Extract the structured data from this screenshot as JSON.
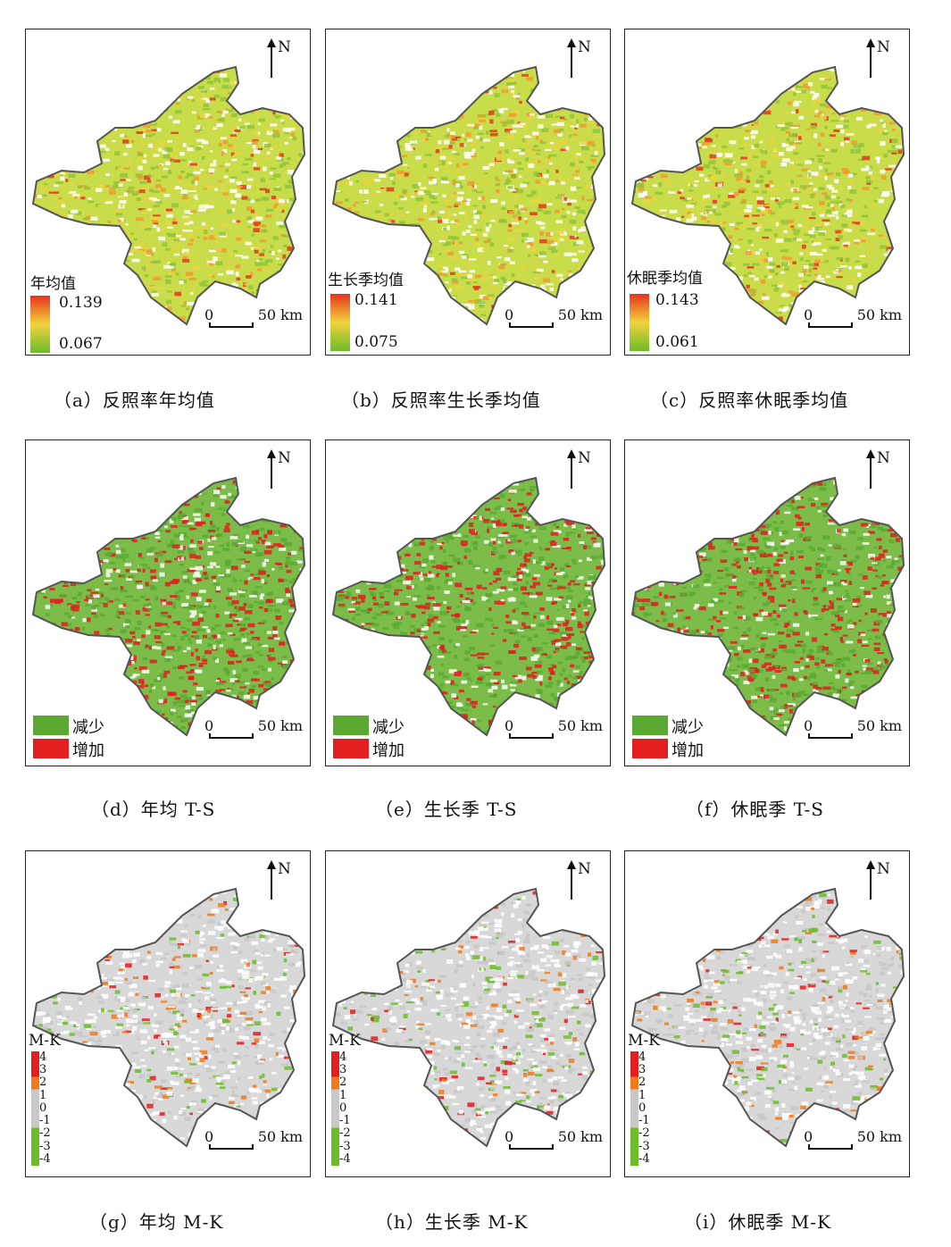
{
  "north_label": "N",
  "scale": {
    "zero": "0",
    "distance": "50 km"
  },
  "mean_panels": [
    {
      "id": "a",
      "legend_title": "年均值",
      "max": "0.139",
      "min": "0.067",
      "caption": "（a）反照率年均值"
    },
    {
      "id": "b",
      "legend_title": "生长季均值",
      "max": "0.141",
      "min": "0.075",
      "caption": "（b）反照率生长季均值"
    },
    {
      "id": "c",
      "legend_title": "休眠季均值",
      "max": "0.143",
      "min": "0.061",
      "caption": "（c）反照率休眠季均值"
    }
  ],
  "ts_legend": {
    "decrease": "减少",
    "increase": "增加"
  },
  "ts_panels": [
    {
      "id": "d",
      "caption": "（d）年均 T-S"
    },
    {
      "id": "e",
      "caption": "（e）生长季 T-S"
    },
    {
      "id": "f",
      "caption": "（f）休眠季 T-S"
    }
  ],
  "mk_legend": {
    "title": "M-K",
    "labels": [
      "4",
      "3",
      "2",
      "1",
      "0",
      "-1",
      "-2",
      "-3",
      "-4"
    ]
  },
  "mk_panels": [
    {
      "id": "g",
      "caption": "（g）年均 M-K"
    },
    {
      "id": "h",
      "caption": "（h）生长季 M-K"
    },
    {
      "id": "i",
      "caption": "（i）休眠季 M-K"
    }
  ],
  "colors": {
    "gradient_high": "#e8321e",
    "gradient_mid": "#f2d23c",
    "gradient_low": "#6cbd2a",
    "decrease": "#5aaa32",
    "increase": "#e21e1e",
    "mk_pos_strong": "#e21e1e",
    "mk_pos_mid": "#f07a1a",
    "mk_neutral": "#c8c8c8",
    "mk_neg": "#6cbd2a",
    "outline": "#555555"
  }
}
